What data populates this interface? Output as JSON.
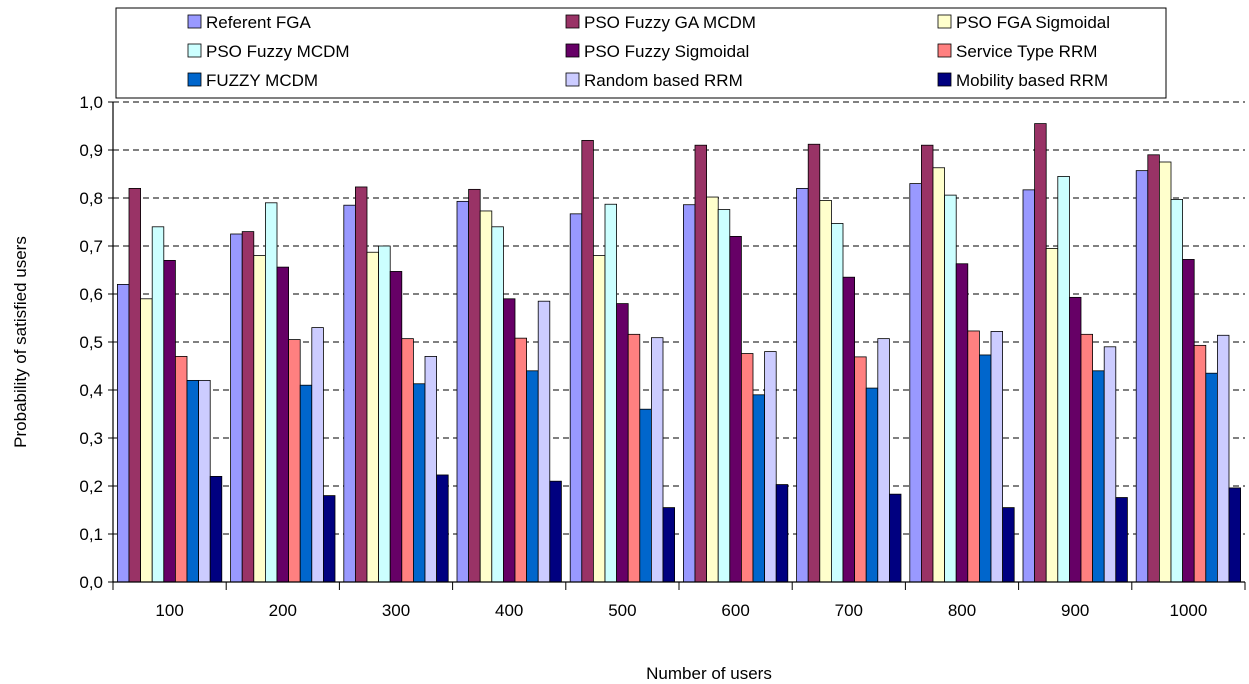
{
  "chart_data": {
    "type": "bar",
    "title": "",
    "xlabel": "Number of users",
    "ylabel": "Probability of satisfied users",
    "ylim": [
      0,
      1.0
    ],
    "yticks": [
      "0,0",
      "0,1",
      "0,2",
      "0,3",
      "0,4",
      "0,5",
      "0,6",
      "0,7",
      "0,8",
      "0,9",
      "1,0"
    ],
    "categories": [
      "100",
      "200",
      "300",
      "400",
      "500",
      "600",
      "700",
      "800",
      "900",
      "1000"
    ],
    "grid": true,
    "legend_position": "top",
    "series": [
      {
        "name": "Referent FGA",
        "color": "#9999ff",
        "values": [
          0.62,
          0.725,
          0.785,
          0.793,
          0.767,
          0.786,
          0.82,
          0.83,
          0.817,
          0.857
        ]
      },
      {
        "name": "PSO Fuzzy GA MCDM",
        "color": "#993366",
        "values": [
          0.82,
          0.73,
          0.823,
          0.818,
          0.92,
          0.91,
          0.912,
          0.91,
          0.955,
          0.89
        ]
      },
      {
        "name": "PSO FGA Sigmoidal",
        "color": "#ffffcc",
        "values": [
          0.59,
          0.68,
          0.687,
          0.773,
          0.68,
          0.802,
          0.795,
          0.863,
          0.695,
          0.875
        ]
      },
      {
        "name": "PSO Fuzzy MCDM",
        "color": "#ccffff",
        "values": [
          0.74,
          0.79,
          0.7,
          0.74,
          0.787,
          0.776,
          0.747,
          0.806,
          0.845,
          0.797
        ]
      },
      {
        "name": "PSO Fuzzy Sigmoidal",
        "color": "#660066",
        "values": [
          0.67,
          0.656,
          0.647,
          0.59,
          0.58,
          0.72,
          0.635,
          0.663,
          0.593,
          0.672
        ]
      },
      {
        "name": "Service Type RRM",
        "color": "#ff8080",
        "values": [
          0.47,
          0.505,
          0.507,
          0.508,
          0.516,
          0.476,
          0.469,
          0.523,
          0.516,
          0.493
        ]
      },
      {
        "name": "FUZZY MCDM",
        "color": "#0066cc",
        "values": [
          0.42,
          0.41,
          0.413,
          0.44,
          0.36,
          0.39,
          0.404,
          0.473,
          0.44,
          0.435
        ]
      },
      {
        "name": "Random based RRM",
        "color": "#ccccff",
        "values": [
          0.42,
          0.53,
          0.47,
          0.585,
          0.509,
          0.48,
          0.507,
          0.522,
          0.49,
          0.514
        ]
      },
      {
        "name": "Mobility based RRM",
        "color": "#000080",
        "values": [
          0.22,
          0.18,
          0.223,
          0.21,
          0.155,
          0.203,
          0.183,
          0.155,
          0.176,
          0.196
        ]
      }
    ]
  }
}
